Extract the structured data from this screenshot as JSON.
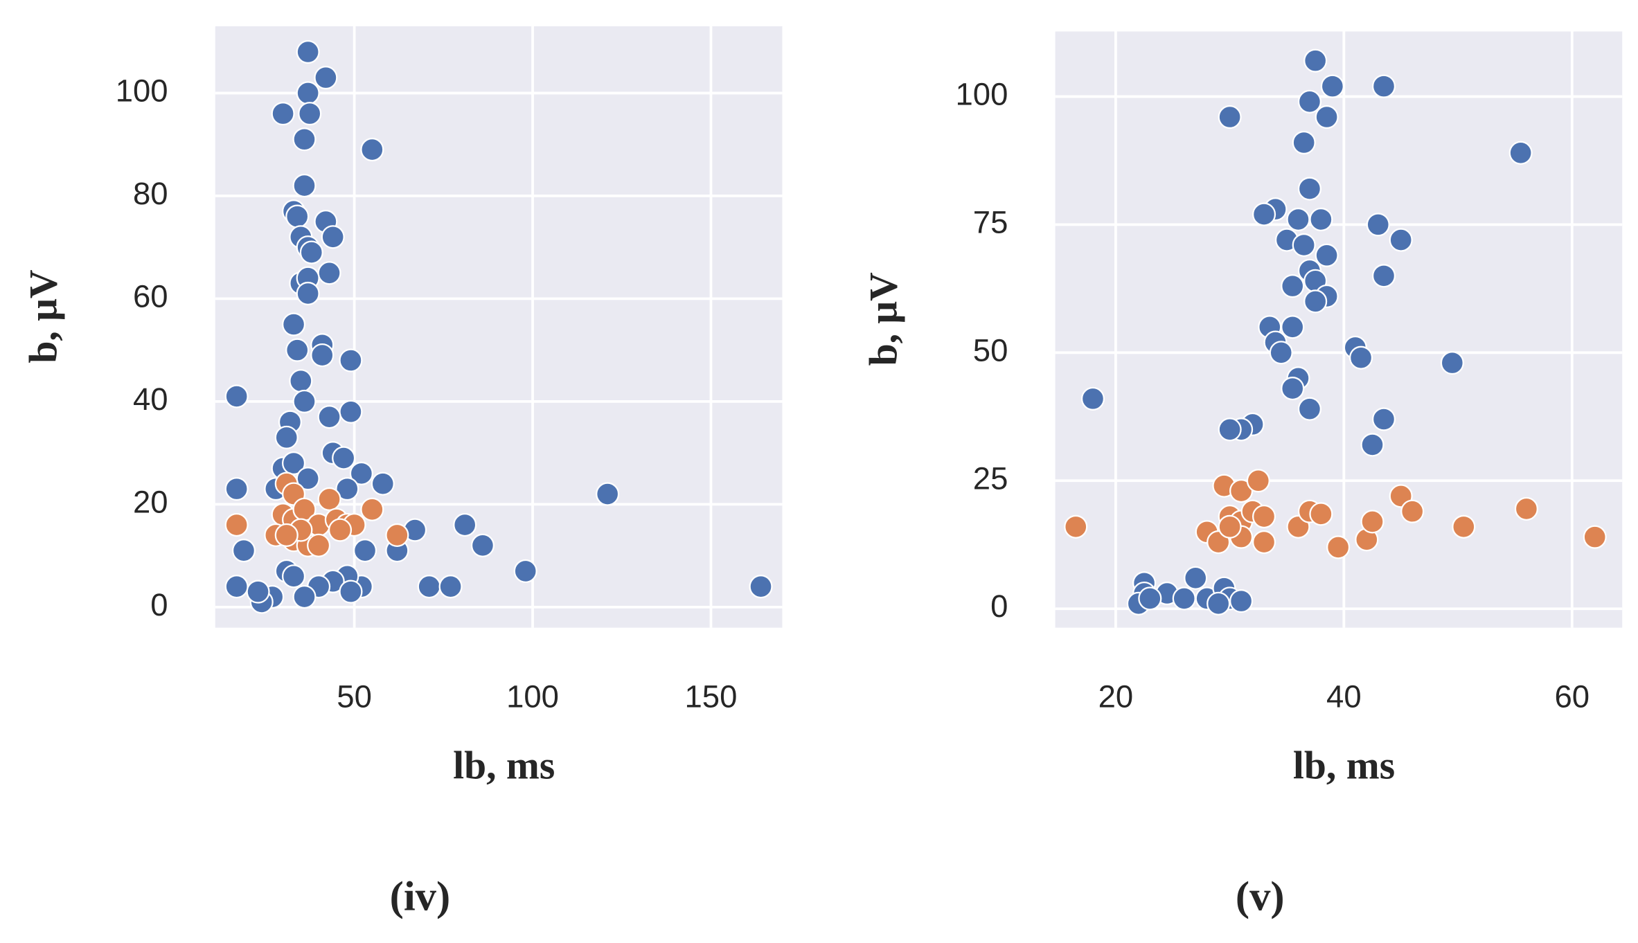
{
  "chart_data": [
    {
      "type": "scatter",
      "xlabel": "lb, ms",
      "ylabel": "b, μV",
      "caption": "(iv)",
      "xlim": [
        11,
        170
      ],
      "ylim": [
        -4,
        113
      ],
      "xticks": [
        50,
        100,
        150
      ],
      "yticks": [
        0,
        20,
        40,
        60,
        80,
        100
      ],
      "grid": true,
      "series": [
        {
          "color": "#4c72b0",
          "x": [
            37,
            42,
            30,
            37,
            37.5,
            36,
            55,
            36,
            33,
            34,
            42,
            44,
            35,
            37,
            38,
            43,
            35,
            37,
            37,
            33,
            34,
            41,
            41,
            49,
            35,
            36,
            17,
            49,
            43,
            32,
            31,
            44,
            47,
            30,
            33,
            37,
            52,
            58,
            17,
            48,
            28,
            19,
            53,
            62,
            67,
            81,
            86,
            98,
            121,
            164,
            71,
            77,
            52,
            48,
            44,
            40,
            36,
            31,
            27,
            24,
            23,
            17,
            33,
            49
          ],
          "y": [
            108,
            103,
            96,
            100,
            96,
            91,
            89,
            82,
            77,
            76,
            75,
            72,
            72,
            70,
            69,
            65,
            63,
            64,
            61,
            55,
            50,
            51,
            49,
            48,
            44,
            40,
            41,
            38,
            37,
            36,
            33,
            30,
            29,
            27,
            28,
            25,
            26,
            24,
            23,
            23,
            23,
            11,
            11,
            11,
            15,
            16,
            12,
            7,
            22,
            4,
            4,
            4,
            4,
            6,
            5,
            4,
            2,
            7,
            2,
            1,
            3,
            4,
            6,
            3
          ]
        },
        {
          "color": "#dd8452",
          "x": [
            17,
            31,
            33,
            30,
            33,
            36,
            40,
            43,
            45,
            48,
            50,
            55,
            62,
            33,
            37,
            28,
            40,
            46,
            35,
            31
          ],
          "y": [
            16,
            24,
            22,
            18,
            17,
            19,
            16,
            21,
            17,
            16,
            16,
            19,
            14,
            13,
            12,
            14,
            12,
            15,
            15,
            14
          ]
        }
      ]
    },
    {
      "type": "scatter",
      "xlabel": "lb, ms",
      "ylabel": "b, μV",
      "caption": "(v)",
      "xlim": [
        14.7,
        64.4
      ],
      "ylim": [
        -3.7,
        112.7
      ],
      "xticks": [
        20,
        40,
        60
      ],
      "yticks": [
        0,
        25,
        50,
        75,
        100
      ],
      "grid": true,
      "series": [
        {
          "color": "#4c72b0",
          "x": [
            18,
            30,
            37.5,
            39,
            43.5,
            37,
            38.5,
            36.5,
            55.5,
            37,
            34,
            33,
            36,
            38,
            43,
            45,
            35,
            36.5,
            38.5,
            37,
            43.5,
            35.5,
            37.5,
            38.5,
            37.5,
            33.5,
            35.5,
            34,
            41,
            41.5,
            34.5,
            49.5,
            36,
            35.5,
            37,
            43.5,
            32,
            31,
            30,
            42.5,
            22.5,
            22.5,
            22,
            24.5,
            26,
            27,
            28,
            29.5,
            30,
            31,
            29,
            23
          ],
          "y": [
            41,
            96,
            107,
            102,
            102,
            99,
            96,
            91,
            89,
            82,
            78,
            77,
            76,
            76,
            75,
            72,
            72,
            71,
            69,
            66,
            65,
            63,
            64,
            61,
            60,
            55,
            55,
            52,
            51,
            49,
            50,
            48,
            45,
            43,
            39,
            37,
            36,
            35,
            35,
            32,
            5,
            3,
            1,
            3,
            2,
            6,
            2,
            4,
            2,
            1.5,
            1,
            2
          ]
        },
        {
          "color": "#dd8452",
          "x": [
            16.5,
            29.5,
            31,
            32.5,
            28,
            30,
            31,
            32,
            29,
            31,
            33,
            30,
            33,
            36,
            37,
            38,
            39.5,
            42,
            42.5,
            45,
            46,
            50.5,
            56,
            62
          ],
          "y": [
            16,
            24,
            23,
            25,
            15,
            18,
            17,
            19,
            13,
            14,
            13,
            16,
            18,
            16,
            19,
            18.5,
            12,
            13.5,
            17,
            22,
            19,
            16,
            19.5,
            14
          ]
        }
      ]
    }
  ]
}
